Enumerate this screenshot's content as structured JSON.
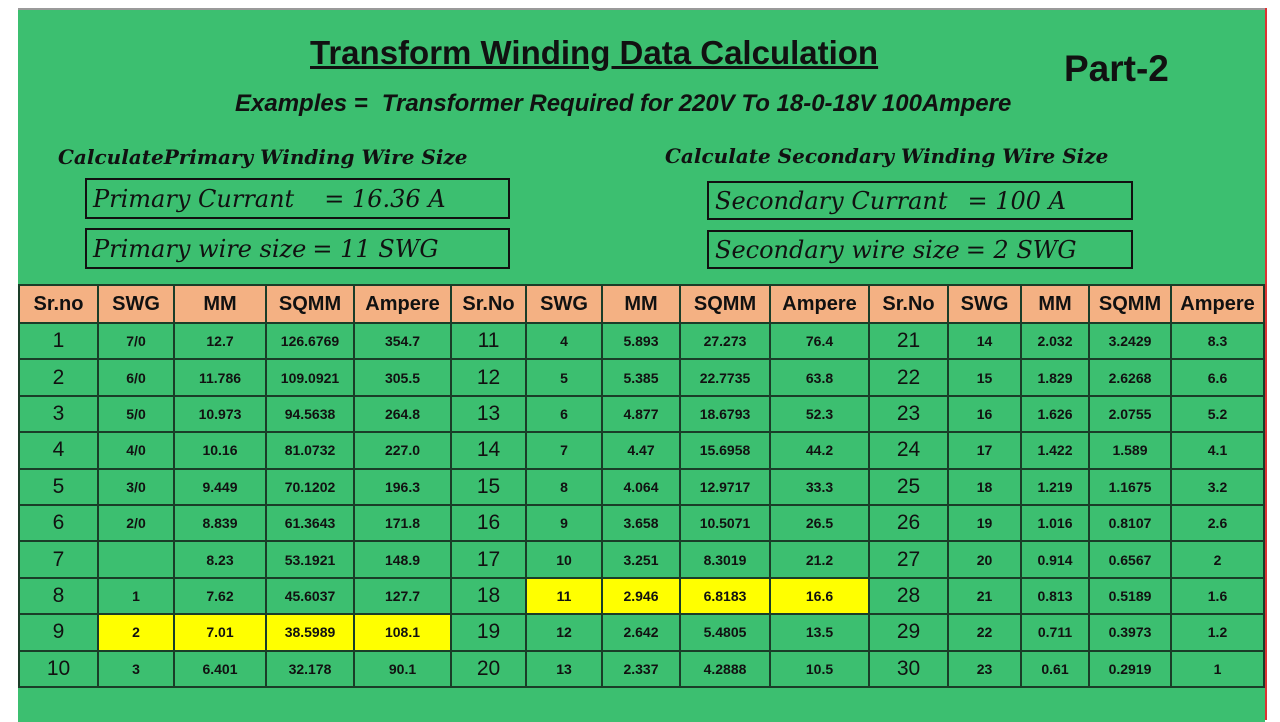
{
  "header": {
    "title": "Transform Winding Data Calculation",
    "part": "Part-2",
    "example_label": "Examples =",
    "example_text": "Transformer Required for 220V To 18-0-18V 100Ampere"
  },
  "primary": {
    "heading": "CalculatePrimary Winding Wire Size",
    "boxes": [
      {
        "label": "Primary Currant",
        "value": "= 16.36 A"
      },
      {
        "label": "Primary wire size",
        "value": "= 11 SWG"
      }
    ]
  },
  "secondary": {
    "heading": "Calculate Secondary Winding Wire Size",
    "boxes": [
      {
        "label": "Secondary Currant",
        "value": "= 100 A"
      },
      {
        "label": "Secondary wire size",
        "value": "= 2 SWG"
      }
    ]
  },
  "table": {
    "header": [
      "Sr.no",
      "SWG",
      "MM",
      "SQMM",
      "Ampere",
      "Sr.No",
      "SWG",
      "MM",
      "SQMM",
      "Ampere",
      "Sr.No",
      "SWG",
      "MM",
      "SQMM",
      "Ampere"
    ],
    "rows": [
      [
        "1",
        "7/0",
        "12.7",
        "126.6769",
        "354.7",
        "11",
        "4",
        "5.893",
        "27.273",
        "76.4",
        "21",
        "14",
        "2.032",
        "3.2429",
        "8.3"
      ],
      [
        "2",
        "6/0",
        "11.786",
        "109.0921",
        "305.5",
        "12",
        "5",
        "5.385",
        "22.7735",
        "63.8",
        "22",
        "15",
        "1.829",
        "2.6268",
        "6.6"
      ],
      [
        "3",
        "5/0",
        "10.973",
        "94.5638",
        "264.8",
        "13",
        "6",
        "4.877",
        "18.6793",
        "52.3",
        "23",
        "16",
        "1.626",
        "2.0755",
        "5.2"
      ],
      [
        "4",
        "4/0",
        "10.16",
        "81.0732",
        "227.0",
        "14",
        "7",
        "4.47",
        "15.6958",
        "44.2",
        "24",
        "17",
        "1.422",
        "1.589",
        "4.1"
      ],
      [
        "5",
        "3/0",
        "9.449",
        "70.1202",
        "196.3",
        "15",
        "8",
        "4.064",
        "12.9717",
        "33.3",
        "25",
        "18",
        "1.219",
        "1.1675",
        "3.2"
      ],
      [
        "6",
        "2/0",
        "8.839",
        "61.3643",
        "171.8",
        "16",
        "9",
        "3.658",
        "10.5071",
        "26.5",
        "26",
        "19",
        "1.016",
        "0.8107",
        "2.6"
      ],
      [
        "7",
        null,
        "8.23",
        "53.1921",
        "148.9",
        "17",
        "10",
        "3.251",
        "8.3019",
        "21.2",
        "27",
        "20",
        "0.914",
        "0.6567",
        "2"
      ],
      [
        "8",
        "1",
        "7.62",
        "45.6037",
        "127.7",
        "18",
        "11",
        "2.946",
        "6.8183",
        "16.6",
        "28",
        "21",
        "0.813",
        "0.5189",
        "1.6"
      ],
      [
        "9",
        "2",
        "7.01",
        "38.5989",
        "108.1",
        "19",
        "12",
        "2.642",
        "5.4805",
        "13.5",
        "29",
        "22",
        "0.711",
        "0.3973",
        "1.2"
      ],
      [
        "10",
        "3",
        "6.401",
        "32.178",
        "90.1",
        "20",
        "13",
        "2.337",
        "4.2888",
        "10.5",
        "30",
        "23",
        "0.61",
        "0.2919",
        "1"
      ]
    ]
  }
}
